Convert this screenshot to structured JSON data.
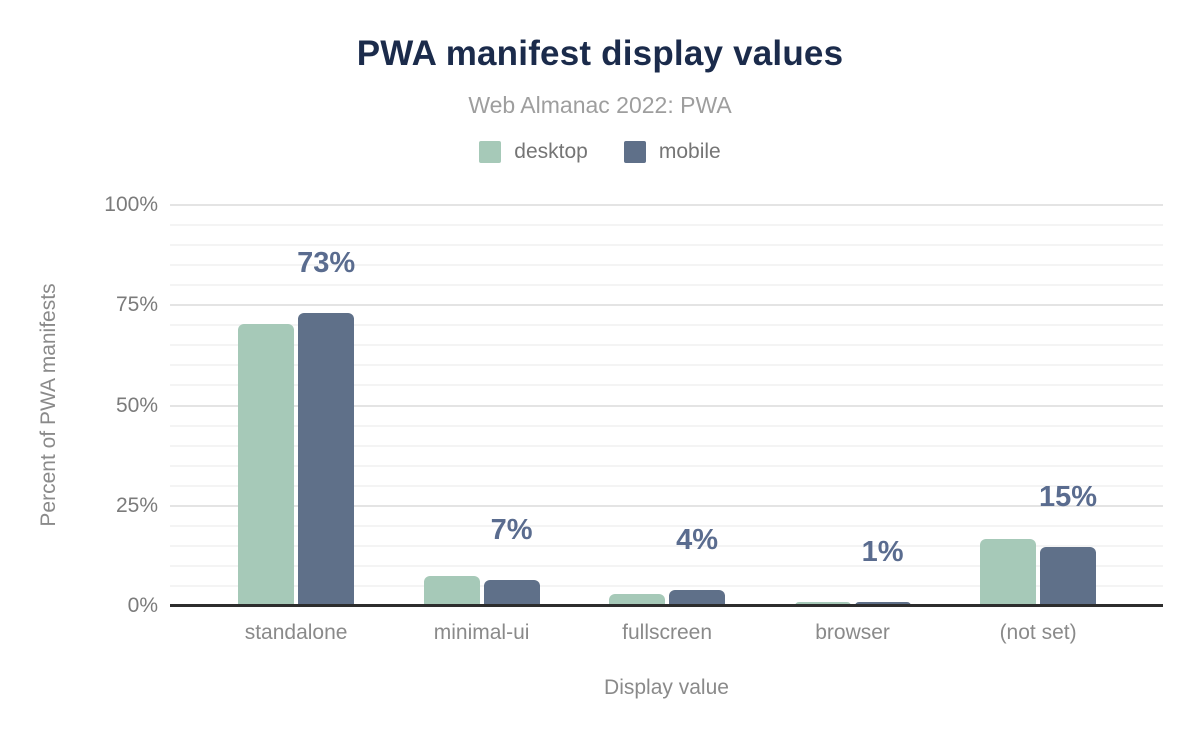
{
  "chart_data": {
    "type": "bar",
    "title": "PWA manifest display values",
    "subtitle": "Web Almanac 2022: PWA",
    "xlabel": "Display value",
    "ylabel": "Percent of PWA manifests",
    "categories": [
      "standalone",
      "minimal-ui",
      "fullscreen",
      "browser",
      "(not set)"
    ],
    "series": [
      {
        "name": "desktop",
        "color": "#a6c9b8",
        "values": [
          70.4,
          7.5,
          2.9,
          1.1,
          16.7
        ]
      },
      {
        "name": "mobile",
        "color": "#5f7089",
        "values": [
          73.0,
          6.5,
          3.9,
          1.1,
          14.6
        ]
      }
    ],
    "annotations": {
      "anchor_series": "mobile",
      "labels": [
        "73%",
        "7%",
        "4%",
        "1%",
        "15%"
      ],
      "color": "#5a6c8f"
    },
    "ylim": [
      0,
      100
    ],
    "yticks": [
      {
        "value": 0,
        "label": "0%"
      },
      {
        "value": 25,
        "label": "25%"
      },
      {
        "value": 50,
        "label": "50%"
      },
      {
        "value": 75,
        "label": "75%"
      },
      {
        "value": 100,
        "label": "100%"
      }
    ],
    "grid": {
      "minor_step": 5,
      "major_step": 25,
      "on": true
    },
    "legend_position": "top",
    "colors": {
      "title": "#1b2b4b",
      "subtitle": "#9e9e9e",
      "axis_text": "#8a8a8a",
      "tick_text": "#7b7b7b",
      "axis_line": "#2d2d2d",
      "grid_minor": "#f4f4f4",
      "grid_major": "#e4e4e4",
      "background": "#ffffff"
    }
  }
}
